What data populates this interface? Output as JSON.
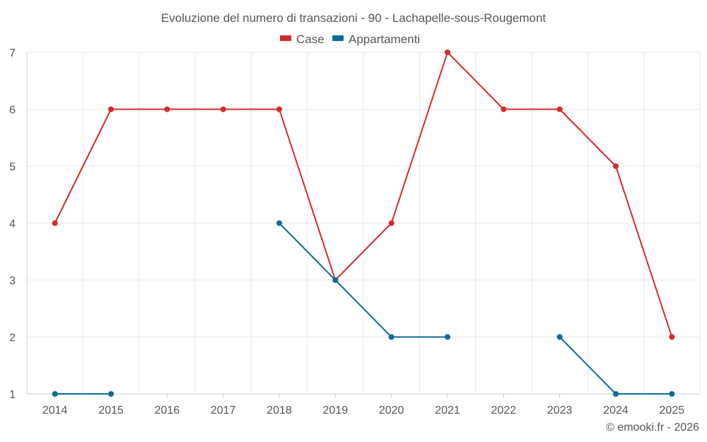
{
  "chart_data": {
    "type": "line",
    "title": "Evoluzione del numero di transazioni - 90 - Lachapelle-sous-Rougemont",
    "categories": [
      "2014",
      "2015",
      "2016",
      "2017",
      "2018",
      "2019",
      "2020",
      "2021",
      "2022",
      "2023",
      "2024",
      "2025"
    ],
    "ylim": [
      1,
      7
    ],
    "yticks": [
      1,
      2,
      3,
      4,
      5,
      6,
      7
    ],
    "legend_position": "top-center",
    "grid": true,
    "series": [
      {
        "name": "Case",
        "color": "#d42a2a",
        "values": [
          4,
          6,
          6,
          6,
          6,
          3,
          4,
          7,
          6,
          6,
          5,
          2
        ]
      },
      {
        "name": "Appartamenti",
        "color": "#0c6a9c",
        "values": [
          1,
          1,
          null,
          null,
          4,
          3,
          2,
          2,
          null,
          2,
          1,
          1
        ]
      }
    ]
  },
  "credit": "© emooki.fr - 2026"
}
